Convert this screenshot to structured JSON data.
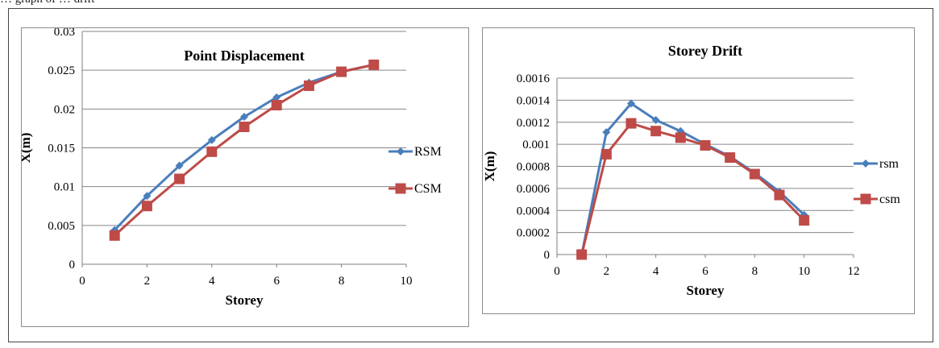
{
  "caption": "… graph of … drift",
  "chart_data": [
    {
      "type": "line",
      "title": "Point Displacement",
      "xlabel": "Storey",
      "ylabel": "X(m)",
      "xlim": [
        0,
        10
      ],
      "ylim": [
        0,
        0.03
      ],
      "x_ticks": [
        "0",
        "2",
        "4",
        "6",
        "8",
        "10"
      ],
      "y_ticks": [
        "0",
        "0.005",
        "0.01",
        "0.015",
        "0.02",
        "0.025",
        "0.03"
      ],
      "grid": "horizontal",
      "legend": "right",
      "x": [
        1,
        2,
        3,
        4,
        5,
        6,
        7,
        8,
        9
      ],
      "series": [
        {
          "name": "RSM",
          "marker": "diamond",
          "color": "#4a7ebb",
          "values": [
            0.0044,
            0.0088,
            0.0127,
            0.016,
            0.019,
            0.0215,
            0.0234,
            0.0248,
            0.0257
          ]
        },
        {
          "name": "CSM",
          "marker": "square",
          "color": "#be4b48",
          "values": [
            0.0037,
            0.0075,
            0.011,
            0.0145,
            0.0177,
            0.0205,
            0.023,
            0.0248,
            0.0257
          ]
        }
      ]
    },
    {
      "type": "line",
      "title": "Storey Drift",
      "xlabel": "Storey",
      "ylabel": "X(m)",
      "xlim": [
        0,
        12
      ],
      "ylim": [
        0,
        0.0016
      ],
      "x_ticks": [
        "0",
        "2",
        "4",
        "6",
        "8",
        "10",
        "12"
      ],
      "y_ticks": [
        "0",
        "0.0002",
        "0.0004",
        "0.0006",
        "0.0008",
        "0.001",
        "0.0012",
        "0.0014",
        "0.0016"
      ],
      "grid": "horizontal",
      "legend": "right",
      "x": [
        1,
        2,
        3,
        4,
        5,
        6,
        7,
        8,
        9,
        10
      ],
      "series": [
        {
          "name": "rsm",
          "marker": "diamond",
          "color": "#4a7ebb",
          "values": [
            0,
            0.00111,
            0.00137,
            0.00122,
            0.00112,
            0.001,
            0.00089,
            0.00074,
            0.00057,
            0.00036
          ]
        },
        {
          "name": "csm",
          "marker": "square",
          "color": "#be4b48",
          "values": [
            0,
            0.00091,
            0.00119,
            0.00112,
            0.00106,
            0.00099,
            0.00088,
            0.00073,
            0.00054,
            0.00031
          ]
        }
      ]
    }
  ]
}
